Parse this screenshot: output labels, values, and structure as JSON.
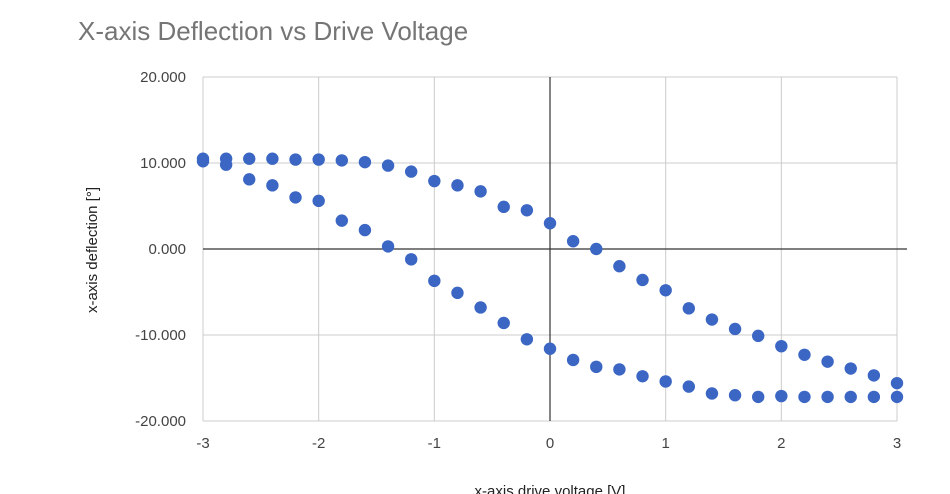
{
  "chart_data": {
    "type": "scatter",
    "title": "X-axis Deflection vs Drive Voltage",
    "xlabel": "x-axis drive voltage [V]",
    "ylabel": "x-axis deflection [°]",
    "xlim": [
      -3,
      3
    ],
    "ylim": [
      -20,
      20
    ],
    "x_ticks": [
      "-3",
      "-2",
      "-1",
      "0",
      "1",
      "2",
      "3"
    ],
    "y_ticks": [
      "20.000",
      "10.000",
      "0.000",
      "-10.000",
      "-20.000"
    ],
    "grid": true,
    "legend": "none",
    "color": "#3b66c4",
    "series": [
      {
        "x": [
          -3.0,
          -2.8,
          -2.6,
          -2.4,
          -2.2,
          -2.0,
          -1.8,
          -1.6,
          -1.4,
          -1.2,
          -1.0,
          -0.8,
          -0.6,
          -0.4,
          -0.2,
          0.0,
          0.2,
          0.4,
          0.6,
          0.8,
          1.0,
          1.2,
          1.4,
          1.6,
          1.8,
          2.0,
          2.2,
          2.4,
          2.6,
          2.8,
          3.0
        ],
        "y": [
          10.5,
          10.5,
          10.5,
          10.5,
          10.4,
          10.4,
          10.3,
          10.1,
          9.7,
          9.0,
          7.9,
          7.4,
          6.7,
          4.9,
          4.5,
          3.0,
          0.9,
          0.0,
          -2.0,
          -3.6,
          -4.8,
          -6.9,
          -8.2,
          -9.3,
          -10.1,
          -11.3,
          -12.3,
          -13.1,
          -13.9,
          -14.7,
          -15.6
        ]
      },
      {
        "x": [
          -3.0,
          -2.8,
          -2.6,
          -2.4,
          -2.2,
          -2.0,
          -1.8,
          -1.6,
          -1.4,
          -1.2,
          -1.0,
          -0.8,
          -0.6,
          -0.4,
          -0.2,
          0.0,
          0.2,
          0.4,
          0.6,
          0.8,
          1.0,
          1.2,
          1.4,
          1.6,
          1.8,
          2.0,
          2.2,
          2.4,
          2.6,
          2.8,
          3.0
        ],
        "y": [
          10.2,
          9.8,
          8.1,
          7.4,
          6.0,
          5.6,
          3.3,
          2.2,
          0.3,
          -1.2,
          -3.7,
          -5.1,
          -6.8,
          -8.6,
          -10.5,
          -11.6,
          -12.9,
          -13.7,
          -14.0,
          -14.8,
          -15.4,
          -16.0,
          -16.8,
          -17.0,
          -17.2,
          -17.1,
          -17.2,
          -17.2,
          -17.2,
          -17.2,
          -17.2
        ]
      }
    ]
  }
}
